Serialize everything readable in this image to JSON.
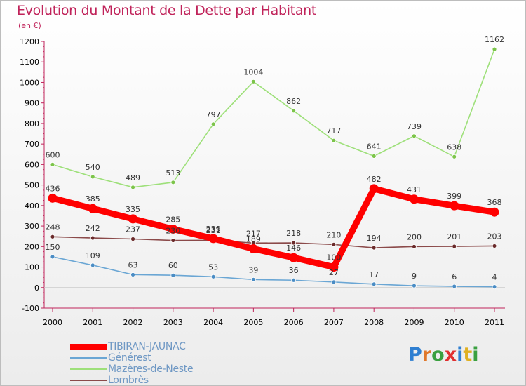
{
  "title": "Evolution du Montant de la Dette par Habitant",
  "subtitle": "(en €)",
  "logo": {
    "letters": [
      "P",
      "r",
      "o",
      "x",
      "i",
      "t",
      "i"
    ],
    "colors": [
      "#2f7fd1",
      "#e0782b",
      "#3aa040",
      "#e03030",
      "#2f7fd1",
      "#e0b020",
      "#3aa040"
    ]
  },
  "chart_data": {
    "type": "line",
    "x": [
      "2000",
      "2001",
      "2002",
      "2003",
      "2004",
      "2005",
      "2006",
      "2007",
      "2008",
      "2009",
      "2010",
      "2011"
    ],
    "ylim": [
      -100,
      1200
    ],
    "yticks": [
      -100,
      0,
      100,
      200,
      300,
      400,
      500,
      600,
      700,
      800,
      900,
      1000,
      1100,
      1200
    ],
    "ytick_labels": [
      "-100",
      "0",
      "100",
      "200",
      "300",
      "400",
      "500",
      "600",
      "700",
      "800",
      "900",
      "1000",
      "1100",
      "1200"
    ],
    "grid": false,
    "legend_position": "bottom-left",
    "series": [
      {
        "name": "TIBIRAN-JAUNAC",
        "values": [
          436,
          385,
          335,
          285,
          239,
          189,
          146,
          100,
          482,
          431,
          399,
          368
        ],
        "labels": [
          "436",
          "385",
          "335",
          "285",
          "239",
          "189",
          "146",
          "100",
          "482",
          "431",
          "399",
          "368"
        ],
        "color": "#ff0000",
        "marker": "#ff0000"
      },
      {
        "name": "Générest",
        "values": [
          150,
          109,
          63,
          60,
          53,
          39,
          36,
          27,
          17,
          9,
          6,
          4
        ],
        "labels": [
          "150",
          "109",
          "63",
          "60",
          "53",
          "39",
          "36",
          "27",
          "17",
          "9",
          "6",
          "4"
        ],
        "color": "#6aa6d4",
        "marker": "#4a8cc4"
      },
      {
        "name": "Mazères-de-Neste",
        "values": [
          600,
          540,
          489,
          513,
          797,
          1004,
          862,
          717,
          641,
          739,
          638,
          1162
        ],
        "labels": [
          "600",
          "540",
          "489",
          "513",
          "797",
          "1004",
          "862",
          "717",
          "641",
          "739",
          "638",
          "1162"
        ],
        "color": "#9ee07a",
        "marker": "#7cc44a"
      },
      {
        "name": "Lombrès",
        "values": [
          248,
          242,
          237,
          230,
          231,
          217,
          218,
          210,
          194,
          200,
          201,
          203
        ],
        "labels": [
          "248",
          "242",
          "237",
          "230",
          "231",
          "217",
          "218",
          "210",
          "194",
          "200",
          "201",
          "203"
        ],
        "color": "#8b4a4a",
        "marker": "#6a2a2a"
      }
    ]
  }
}
